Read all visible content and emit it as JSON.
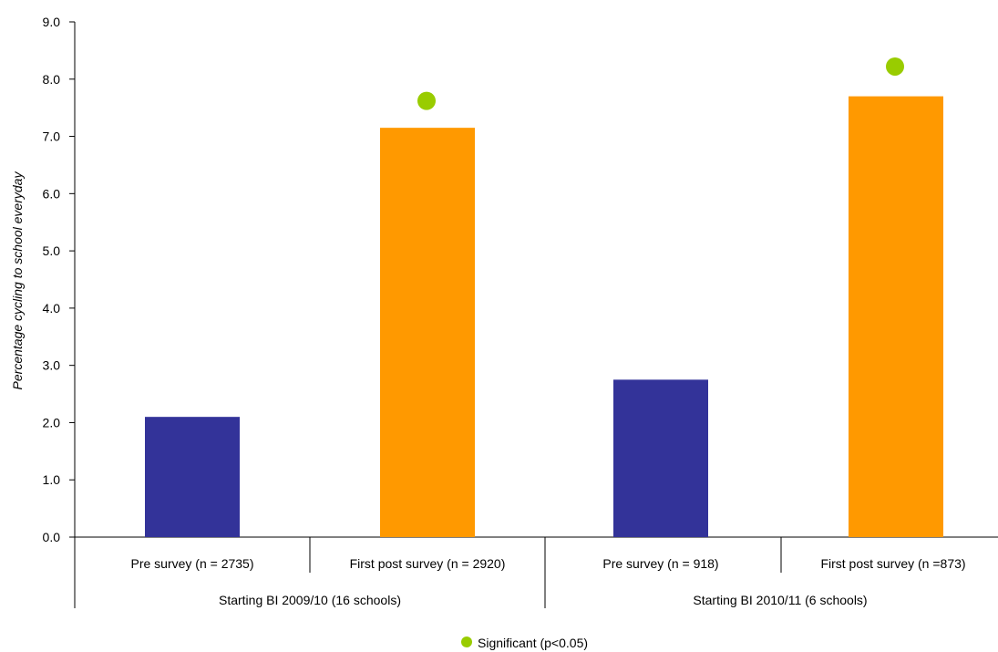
{
  "chart_data": {
    "type": "bar",
    "ylabel": "Percentage cycling to school everyday",
    "ylim": [
      0,
      9
    ],
    "ytick_step": 1,
    "ytick_labels": [
      "0.0",
      "1.0",
      "2.0",
      "3.0",
      "4.0",
      "5.0",
      "6.0",
      "7.0",
      "8.0",
      "9.0"
    ],
    "categories": [
      "Pre survey (n = 2735)",
      "First post survey (n = 2920)",
      "Pre survey (n = 918)",
      "First post survey (n =873)"
    ],
    "groups": [
      "Starting BI 2009/10 (16 schools)",
      "Starting BI 2010/11 (6 schools)"
    ],
    "values": [
      2.1,
      7.15,
      2.75,
      7.7
    ],
    "bar_colors": [
      "#333399",
      "#ff9900",
      "#333399",
      "#ff9900"
    ],
    "significant": [
      false,
      true,
      false,
      true
    ],
    "significance_marker_values": [
      null,
      7.62,
      null,
      8.22
    ],
    "marker_color": "#99cc00",
    "legend": [
      {
        "label": "Significant (p<0.05)",
        "color": "#99cc00",
        "placement": "bottom-center"
      }
    ],
    "grid": false
  }
}
